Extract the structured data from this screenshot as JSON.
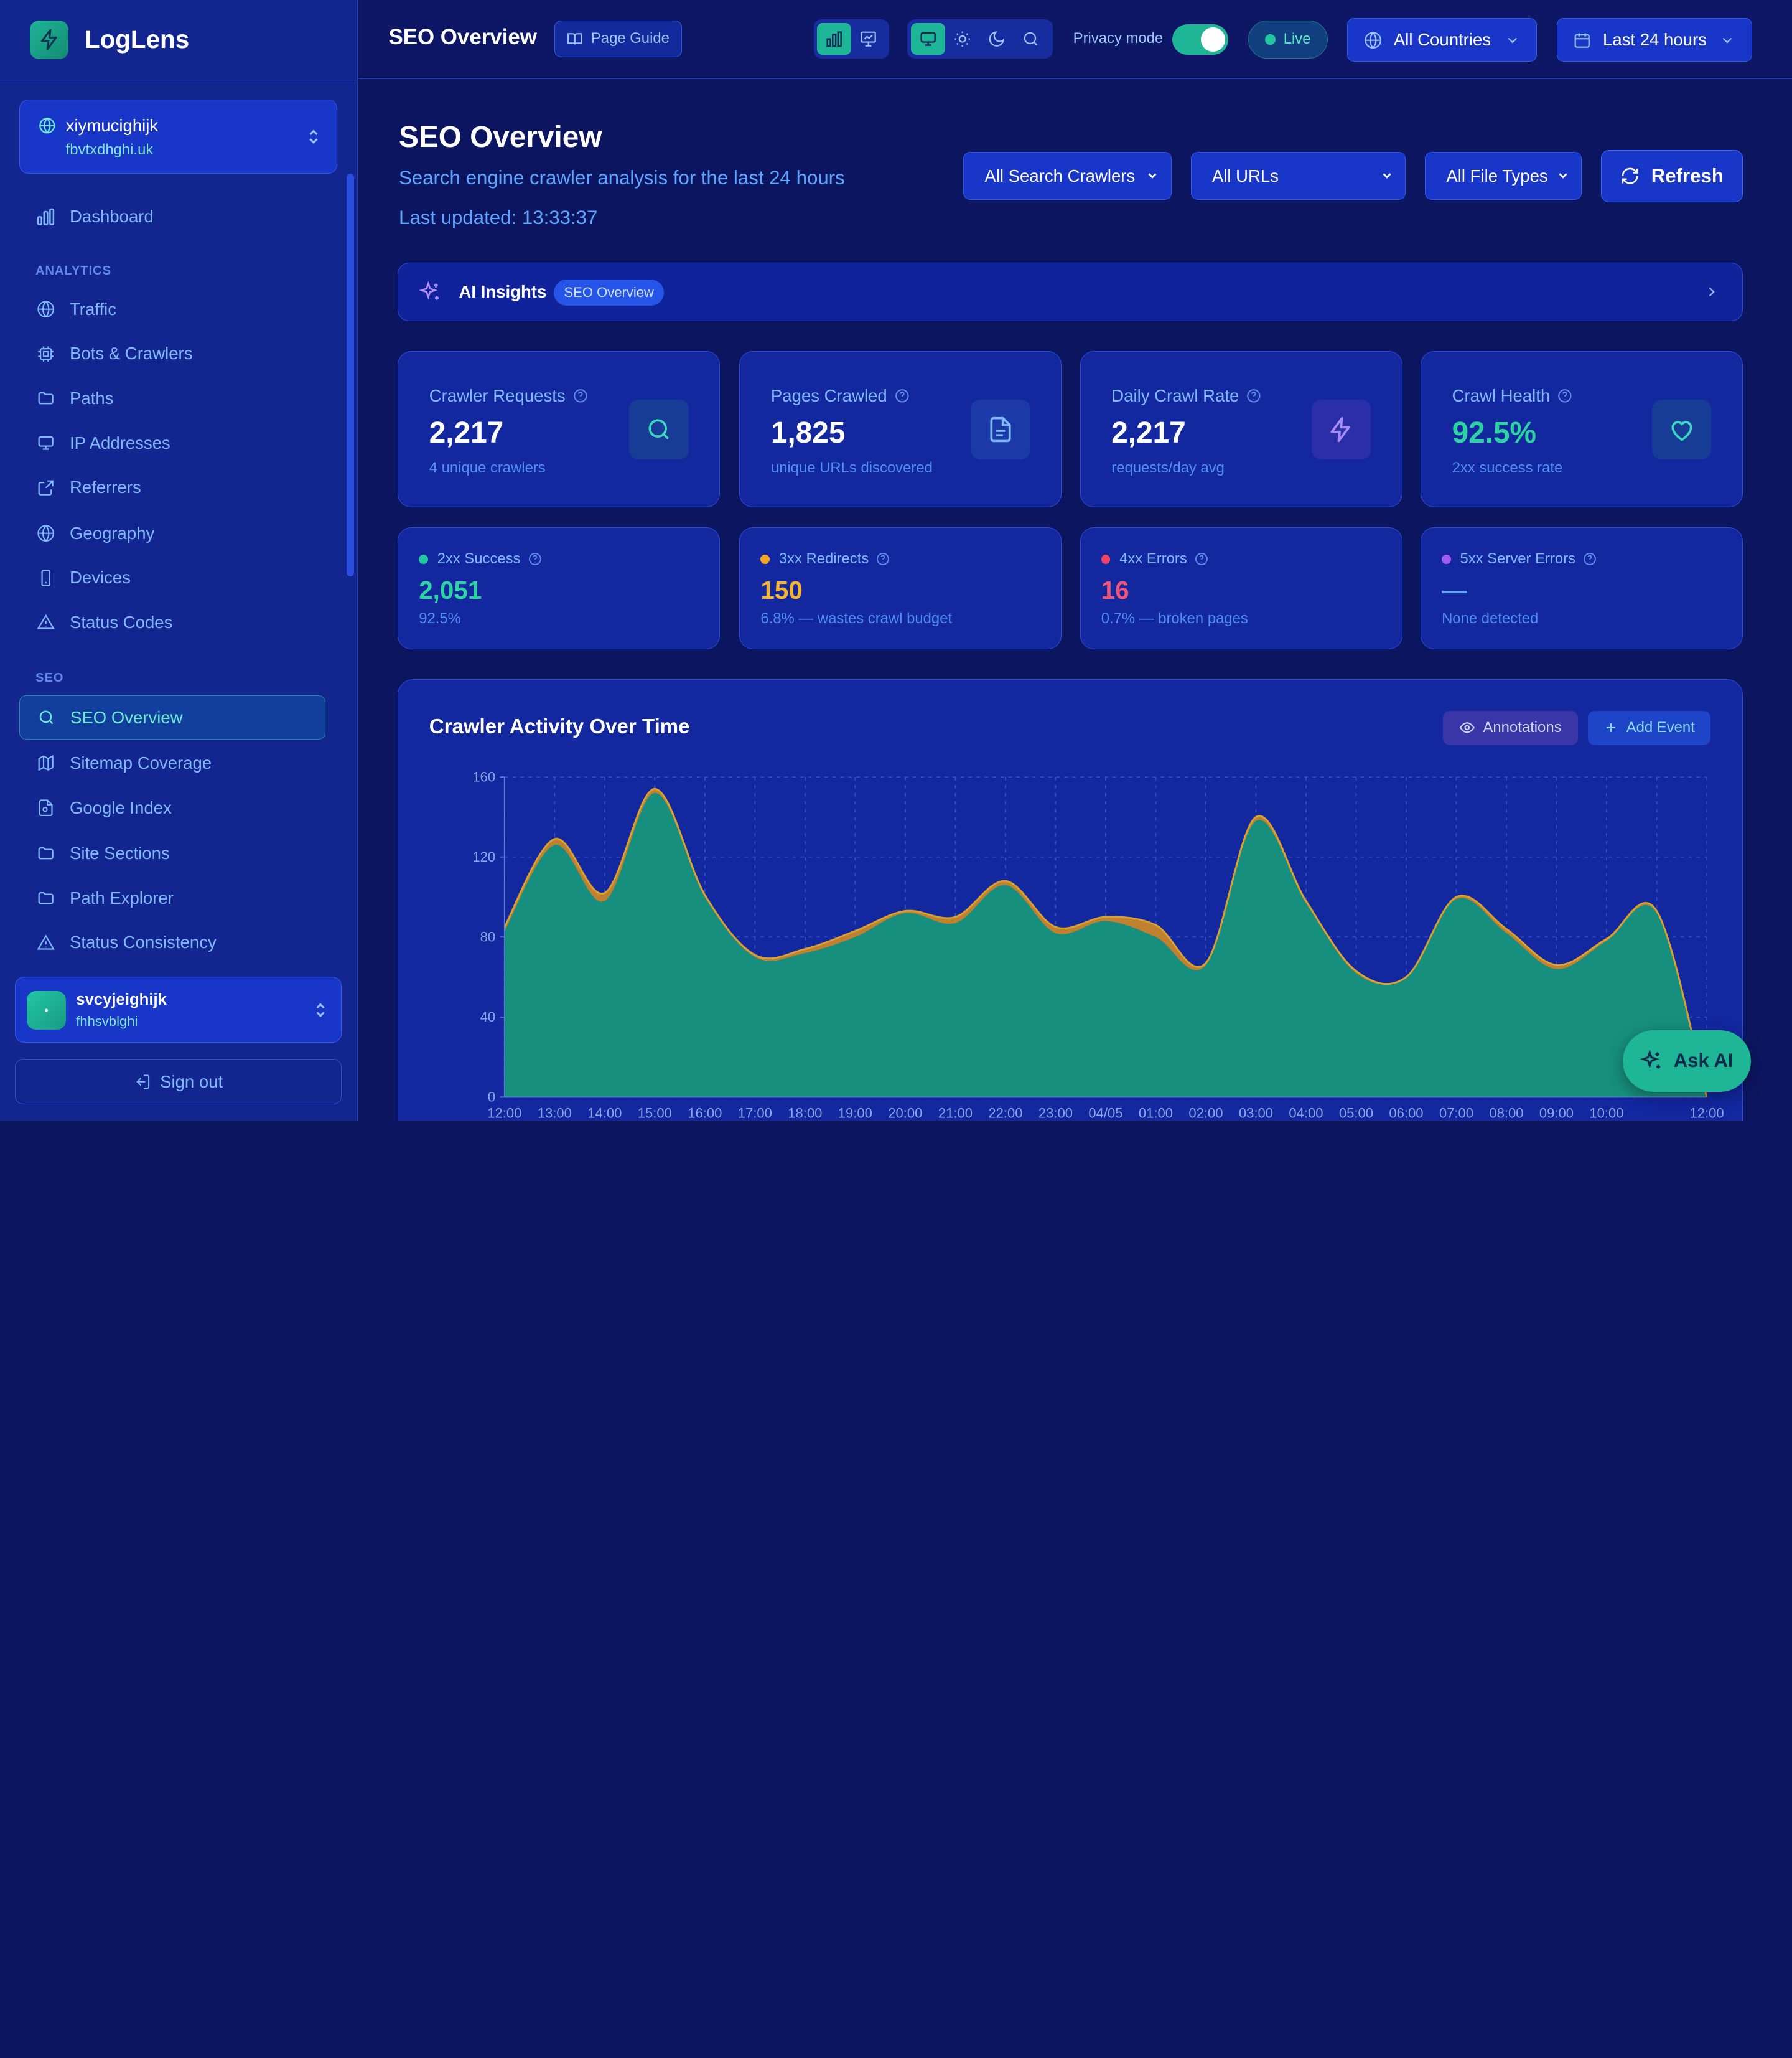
{
  "app": {
    "name": "LogLens"
  },
  "site": {
    "name": "xiymucighijk",
    "domain": "fbvtxdhghi.uk"
  },
  "sidebar": {
    "dashboard": "Dashboard",
    "analytics_title": "ANALYTICS",
    "analytics": [
      "Traffic",
      "Bots & Crawlers",
      "Paths",
      "IP Addresses",
      "Referrers",
      "Geography",
      "Devices",
      "Status Codes"
    ],
    "seo_title": "SEO",
    "seo": [
      "SEO Overview",
      "Sitemap Coverage",
      "Google Index",
      "Site Sections",
      "Path Explorer",
      "Status Consistency"
    ],
    "active": "SEO Overview"
  },
  "user": {
    "name": "svcyjeighijk",
    "email": "fhhsvblghi",
    "avatar": "•"
  },
  "signout": "Sign out",
  "topbar": {
    "title": "SEO Overview",
    "page_guide": "Page Guide",
    "privacy_label": "Privacy mode",
    "live": "Live",
    "countries": "All Countries",
    "range": "Last 24 hours"
  },
  "main": {
    "title": "SEO Overview",
    "subtitle": "Search engine crawler analysis for the last 24 hours",
    "updated": "Last updated: 13:33:37"
  },
  "filters": {
    "crawlers": "All Search Crawlers",
    "urls": "All URLs",
    "types": "All File Types",
    "refresh": "Refresh"
  },
  "ai": {
    "label": "AI Insights",
    "pill": "SEO Overview"
  },
  "kpis": [
    {
      "label": "Crawler Requests",
      "value": "2,217",
      "sub": "4 unique crawlers",
      "icon": "search-icon"
    },
    {
      "label": "Pages Crawled",
      "value": "1,825",
      "sub": "unique URLs discovered",
      "icon": "file-icon"
    },
    {
      "label": "Daily Crawl Rate",
      "value": "2,217",
      "sub": "requests/day avg",
      "icon": "bolt-icon"
    },
    {
      "label": "Crawl Health",
      "value": "92.5%",
      "sub": "2xx success rate",
      "icon": "heart-icon"
    }
  ],
  "stats": [
    {
      "label": "2xx Success",
      "value": "2,051",
      "sub": "92.5%",
      "color": "#22c79f"
    },
    {
      "label": "3xx Redirects",
      "value": "150",
      "sub": "6.8% — wastes crawl budget",
      "color": "#f5a524"
    },
    {
      "label": "4xx Errors",
      "value": "16",
      "sub": "0.7% — broken pages",
      "color": "#f0436a"
    },
    {
      "label": "5xx Server Errors",
      "value": "—",
      "sub": "None detected",
      "color": "#a35cf2"
    }
  ],
  "chart": {
    "title": "Crawler Activity Over Time",
    "annotations": "Annotations",
    "add_event": "Add Event"
  },
  "chart_data": {
    "type": "area",
    "y_ticks": [
      0,
      40,
      80,
      120,
      160
    ],
    "ylim": [
      0,
      160
    ],
    "categories": [
      "12:00",
      "13:00",
      "14:00",
      "15:00",
      "16:00",
      "17:00",
      "18:00",
      "19:00",
      "20:00",
      "21:00",
      "22:00",
      "23:00",
      "04/05",
      "01:00",
      "02:00",
      "03:00",
      "04:00",
      "05:00",
      "06:00",
      "07:00",
      "08:00",
      "09:00",
      "10:00",
      "",
      "12:00"
    ],
    "series": [
      {
        "color": "#178f7e",
        "values": [
          83,
          126,
          98,
          152,
          100,
          70,
          72,
          80,
          92,
          87,
          106,
          82,
          88,
          80,
          66,
          138,
          97,
          62,
          60,
          99,
          82,
          64,
          78,
          92,
          0
        ]
      },
      {
        "color": "#c8852a",
        "values": [
          2,
          3,
          4,
          2,
          1,
          1,
          2,
          3,
          1,
          3,
          2,
          3,
          2,
          6,
          1,
          2,
          1,
          1,
          0,
          1,
          2,
          2,
          1,
          1,
          0
        ]
      }
    ]
  },
  "ask_ai": "Ask AI"
}
